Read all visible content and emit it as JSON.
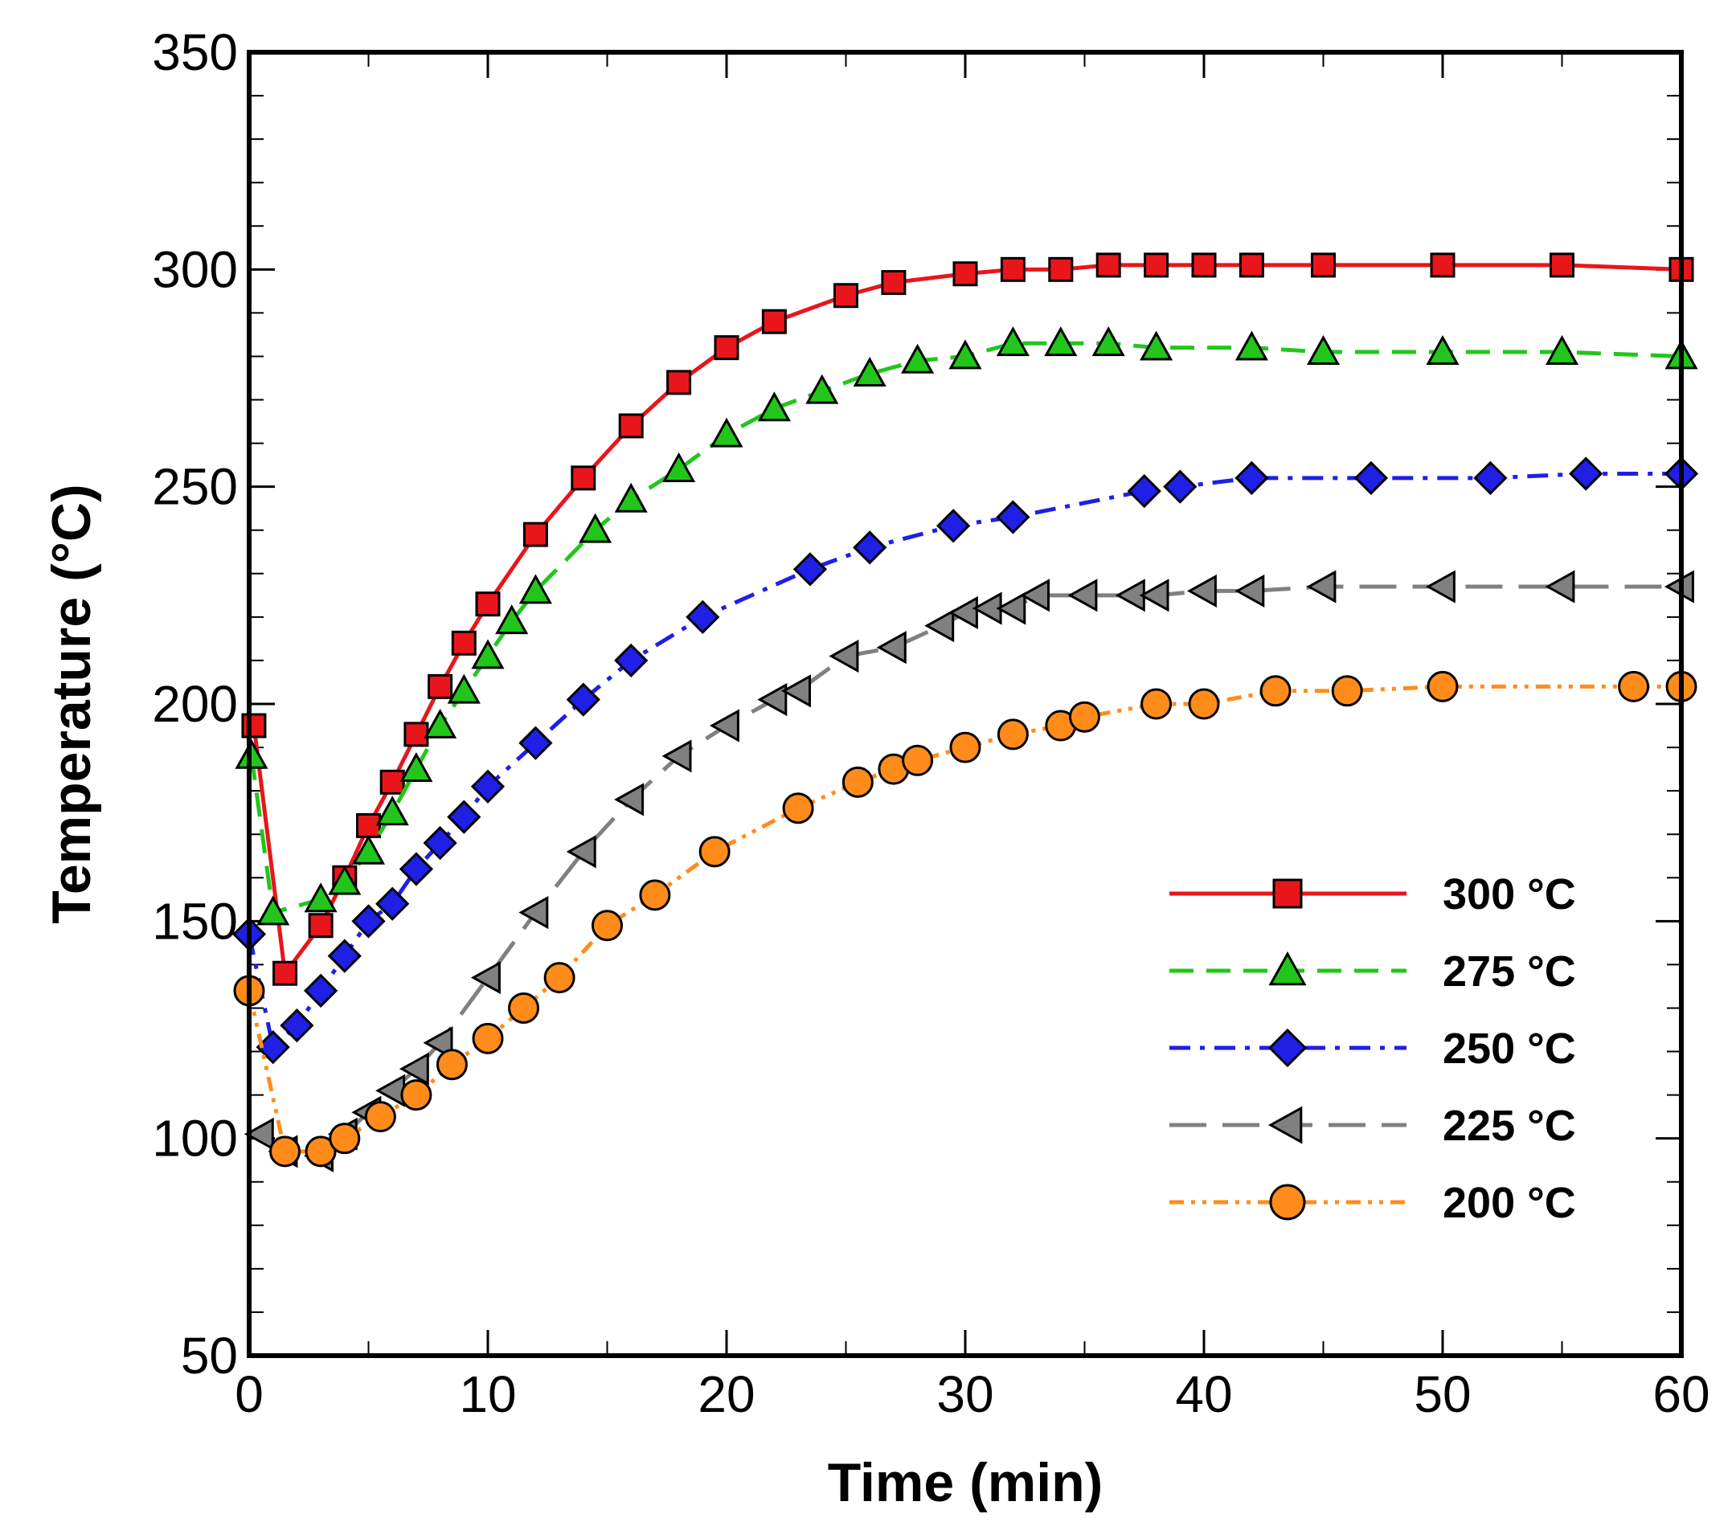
{
  "chart_data": {
    "type": "line",
    "title": "",
    "xlabel": "Time (min)",
    "ylabel": "Temperature (°C)",
    "xlim": [
      0,
      60
    ],
    "ylim": [
      50,
      350
    ],
    "x_ticks": [
      "0",
      "10",
      "20",
      "30",
      "40",
      "50",
      "60"
    ],
    "y_ticks": [
      "50",
      "100",
      "150",
      "200",
      "250",
      "300",
      "350"
    ],
    "grid": false,
    "legend_position": "lower-right",
    "series": [
      {
        "name": "300 °C",
        "color": "#e8161a",
        "marker": "square",
        "dash": "solid",
        "points": [
          [
            0.2,
            195
          ],
          [
            1.5,
            138
          ],
          [
            3,
            149
          ],
          [
            4,
            160
          ],
          [
            5,
            172
          ],
          [
            6,
            182
          ],
          [
            7,
            193
          ],
          [
            8,
            204
          ],
          [
            9,
            214
          ],
          [
            10,
            223
          ],
          [
            12,
            239
          ],
          [
            14,
            252
          ],
          [
            16,
            264
          ],
          [
            18,
            274
          ],
          [
            20,
            282
          ],
          [
            22,
            288
          ],
          [
            25,
            294
          ],
          [
            27,
            297
          ],
          [
            30,
            299
          ],
          [
            32,
            300
          ],
          [
            34,
            300
          ],
          [
            36,
            301
          ],
          [
            38,
            301
          ],
          [
            40,
            301
          ],
          [
            42,
            301
          ],
          [
            45,
            301
          ],
          [
            50,
            301
          ],
          [
            55,
            301
          ],
          [
            60,
            300
          ]
        ]
      },
      {
        "name": "275 °C",
        "color": "#22c61a",
        "marker": "triangle-up",
        "dash": "dashed",
        "points": [
          [
            0.1,
            188
          ],
          [
            1,
            152
          ],
          [
            3,
            155
          ],
          [
            4,
            159
          ],
          [
            5,
            166
          ],
          [
            6,
            175
          ],
          [
            7,
            185
          ],
          [
            8,
            195
          ],
          [
            9,
            203
          ],
          [
            10,
            211
          ],
          [
            11,
            219
          ],
          [
            12,
            226
          ],
          [
            14.5,
            240
          ],
          [
            16,
            247
          ],
          [
            18,
            254
          ],
          [
            20,
            262
          ],
          [
            22,
            268
          ],
          [
            24,
            272
          ],
          [
            26,
            276
          ],
          [
            28,
            279
          ],
          [
            30,
            280
          ],
          [
            32,
            283
          ],
          [
            34,
            283
          ],
          [
            36,
            283
          ],
          [
            38,
            282
          ],
          [
            42,
            282
          ],
          [
            45,
            281
          ],
          [
            50,
            281
          ],
          [
            55,
            281
          ],
          [
            60,
            280
          ]
        ]
      },
      {
        "name": "250 °C",
        "color": "#1f1fe6",
        "marker": "diamond",
        "dash": "dash-dot",
        "points": [
          [
            0,
            147
          ],
          [
            1,
            121
          ],
          [
            2,
            126
          ],
          [
            3,
            134
          ],
          [
            4,
            142
          ],
          [
            5,
            150
          ],
          [
            6,
            154
          ],
          [
            7,
            162
          ],
          [
            8,
            168
          ],
          [
            9,
            174
          ],
          [
            10,
            181
          ],
          [
            12,
            191
          ],
          [
            14,
            201
          ],
          [
            16,
            210
          ],
          [
            19,
            220
          ],
          [
            23.5,
            231
          ],
          [
            26,
            236
          ],
          [
            29.5,
            241
          ],
          [
            32,
            243
          ],
          [
            37.5,
            249
          ],
          [
            39,
            250
          ],
          [
            42,
            252
          ],
          [
            47,
            252
          ],
          [
            52,
            252
          ],
          [
            56,
            253
          ],
          [
            60,
            253
          ]
        ]
      },
      {
        "name": "225 °C",
        "color": "#808080",
        "marker": "triangle-left",
        "dash": "long-dash",
        "points": [
          [
            0.5,
            101
          ],
          [
            1.5,
            97
          ],
          [
            3,
            96
          ],
          [
            4,
            101
          ],
          [
            5,
            106
          ],
          [
            6,
            111
          ],
          [
            7,
            116
          ],
          [
            8,
            122
          ],
          [
            10,
            137
          ],
          [
            12,
            152
          ],
          [
            14,
            166
          ],
          [
            16,
            178
          ],
          [
            18,
            188
          ],
          [
            20,
            195
          ],
          [
            22,
            201
          ],
          [
            23,
            203
          ],
          [
            25,
            211
          ],
          [
            27,
            213
          ],
          [
            29,
            218
          ],
          [
            30,
            221
          ],
          [
            31,
            222
          ],
          [
            32,
            222
          ],
          [
            33,
            225
          ],
          [
            35,
            225
          ],
          [
            37,
            225
          ],
          [
            38,
            225
          ],
          [
            40,
            226
          ],
          [
            42,
            226
          ],
          [
            45,
            227
          ],
          [
            50,
            227
          ],
          [
            55,
            227
          ],
          [
            60,
            227
          ]
        ]
      },
      {
        "name": "200 °C",
        "color": "#ff8c1a",
        "marker": "circle",
        "dash": "dash-dot-dot",
        "points": [
          [
            0,
            134
          ],
          [
            1.5,
            97
          ],
          [
            3,
            97
          ],
          [
            4,
            100
          ],
          [
            5.5,
            105
          ],
          [
            7,
            110
          ],
          [
            8.5,
            117
          ],
          [
            10,
            123
          ],
          [
            11.5,
            130
          ],
          [
            13,
            137
          ],
          [
            15,
            149
          ],
          [
            17,
            156
          ],
          [
            19.5,
            166
          ],
          [
            23,
            176
          ],
          [
            25.5,
            182
          ],
          [
            27,
            185
          ],
          [
            28,
            187
          ],
          [
            30,
            190
          ],
          [
            32,
            193
          ],
          [
            34,
            195
          ],
          [
            35,
            197
          ],
          [
            38,
            200
          ],
          [
            40,
            200
          ],
          [
            43,
            203
          ],
          [
            46,
            203
          ],
          [
            50,
            204
          ],
          [
            58,
            204
          ],
          [
            60,
            204
          ]
        ]
      }
    ]
  }
}
